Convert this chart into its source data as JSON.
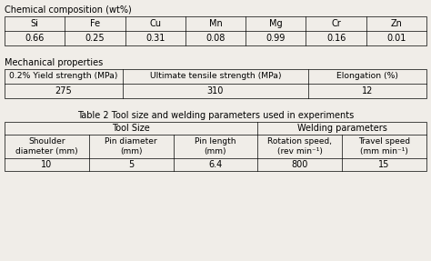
{
  "bg_color": "#f0ede8",
  "title1": "Chemical composition (wt%)",
  "chem_headers": [
    "Si",
    "Fe",
    "Cu",
    "Mn",
    "Mg",
    "Cr",
    "Zn"
  ],
  "chem_values": [
    "0.66",
    "0.25",
    "0.31",
    "0.08",
    "0.99",
    "0.16",
    "0.01"
  ],
  "title2": "Mechanical properties",
  "mech_headers": [
    "0.2% Yield strength (MPa)",
    "Ultimate tensile strength (MPa)",
    "Elongation (%)"
  ],
  "mech_values": [
    "275",
    "310",
    "12"
  ],
  "table2_title": "Table 2 Tool size and welding parameters used in experiments",
  "tool_group": "Tool Size",
  "weld_group": "Welding parameters",
  "param_headers": [
    "Shoulder\ndiameter (mm)",
    "Pin diameter\n(mm)",
    "Pin length\n(mm)",
    "Rotation speed,\n(rev min⁻¹)",
    "Travel speed\n(mm min⁻¹)"
  ],
  "param_values": [
    "10",
    "5",
    "6.4",
    "800",
    "15"
  ],
  "font_size": 7.0,
  "lw": 0.5
}
